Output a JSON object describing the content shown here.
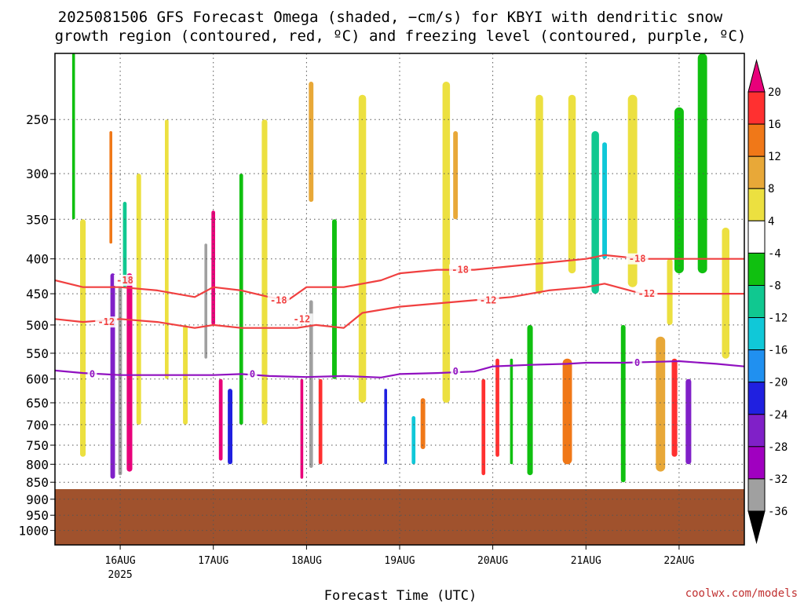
{
  "chart_data": {
    "type": "heatmap",
    "title_line1": "2025081506 GFS Forecast Omega (shaded, −cm/s) for KBYI with dendritic snow",
    "title_line2": "growth region (contoured, red, ºC) and freezing level (contoured, purple, ºC)",
    "xlabel": "Forecast Time (UTC)",
    "ylabel": "",
    "credit": "coolwx.com/models",
    "y_axis": {
      "scale": "pressure",
      "ylim": [
        1050,
        200
      ],
      "ticks": [
        250,
        300,
        350,
        400,
        450,
        500,
        550,
        600,
        650,
        700,
        750,
        800,
        850,
        900,
        950,
        1000
      ]
    },
    "x_axis": {
      "xlim": [
        -0.7,
        6.7
      ],
      "ticks": [
        {
          "x": 0,
          "label": "16AUG",
          "sublabel": "2025"
        },
        {
          "x": 1,
          "label": "17AUG",
          "sublabel": ""
        },
        {
          "x": 2,
          "label": "18AUG",
          "sublabel": ""
        },
        {
          "x": 3,
          "label": "19AUG",
          "sublabel": ""
        },
        {
          "x": 4,
          "label": "20AUG",
          "sublabel": ""
        },
        {
          "x": 5,
          "label": "21AUG",
          "sublabel": ""
        },
        {
          "x": 6,
          "label": "22AUG",
          "sublabel": ""
        }
      ]
    },
    "grid": true,
    "colorbar": {
      "levels": [
        20,
        16,
        12,
        8,
        4,
        -4,
        -8,
        -12,
        -16,
        -20,
        -24,
        -28,
        -32,
        -36
      ],
      "colors": [
        "#e8007a",
        "#ff3030",
        "#f07818",
        "#e8a838",
        "#ece040",
        "#ffffff",
        "#10c010",
        "#10c890",
        "#10c8d8",
        "#2090f0",
        "#2020e0",
        "#8020c8",
        "#a000c0",
        "#a0a0a0",
        "#000000"
      ]
    },
    "ground_level_hpa": 870,
    "ground_color": "#a0522d",
    "omega_features": [
      {
        "x": 0.0,
        "p_top": 440,
        "p_bot": 830,
        "w": 0.04,
        "value": -36
      },
      {
        "x": -0.08,
        "p_top": 420,
        "p_bot": 840,
        "w": 0.05,
        "value": -28
      },
      {
        "x": 0.1,
        "p_top": 420,
        "p_bot": 820,
        "w": 0.06,
        "value": 20
      },
      {
        "x": 0.05,
        "p_top": 330,
        "p_bot": 440,
        "w": 0.04,
        "value": -12
      },
      {
        "x": -0.1,
        "p_top": 260,
        "p_bot": 380,
        "w": 0.03,
        "value": 12
      },
      {
        "x": 0.2,
        "p_top": 300,
        "p_bot": 700,
        "w": 0.05,
        "value": 4
      },
      {
        "x": 0.92,
        "p_top": 380,
        "p_bot": 560,
        "w": 0.03,
        "value": -36
      },
      {
        "x": 1.0,
        "p_top": 340,
        "p_bot": 500,
        "w": 0.04,
        "value": 20
      },
      {
        "x": 1.08,
        "p_top": 600,
        "p_bot": 790,
        "w": 0.04,
        "value": 20
      },
      {
        "x": 1.18,
        "p_top": 620,
        "p_bot": 800,
        "w": 0.05,
        "value": -24
      },
      {
        "x": 1.3,
        "p_top": 300,
        "p_bot": 700,
        "w": 0.04,
        "value": -8
      },
      {
        "x": 1.95,
        "p_top": 600,
        "p_bot": 840,
        "w": 0.03,
        "value": 20
      },
      {
        "x": 2.05,
        "p_top": 460,
        "p_bot": 810,
        "w": 0.04,
        "value": -36
      },
      {
        "x": 2.15,
        "p_top": 600,
        "p_bot": 800,
        "w": 0.04,
        "value": 16
      },
      {
        "x": 2.3,
        "p_top": 350,
        "p_bot": 600,
        "w": 0.05,
        "value": -8
      },
      {
        "x": 2.05,
        "p_top": 220,
        "p_bot": 330,
        "w": 0.05,
        "value": 8
      },
      {
        "x": 2.85,
        "p_top": 620,
        "p_bot": 800,
        "w": 0.03,
        "value": -24
      },
      {
        "x": 3.15,
        "p_top": 680,
        "p_bot": 800,
        "w": 0.04,
        "value": -16
      },
      {
        "x": 3.25,
        "p_top": 640,
        "p_bot": 760,
        "w": 0.05,
        "value": 12
      },
      {
        "x": 3.9,
        "p_top": 600,
        "p_bot": 830,
        "w": 0.04,
        "value": 16
      },
      {
        "x": 4.05,
        "p_top": 560,
        "p_bot": 780,
        "w": 0.04,
        "value": 16
      },
      {
        "x": 4.2,
        "p_top": 560,
        "p_bot": 800,
        "w": 0.03,
        "value": -8
      },
      {
        "x": 4.8,
        "p_top": 560,
        "p_bot": 800,
        "w": 0.1,
        "value": 12
      },
      {
        "x": 5.1,
        "p_top": 260,
        "p_bot": 450,
        "w": 0.08,
        "value": -12
      },
      {
        "x": 5.2,
        "p_top": 270,
        "p_bot": 400,
        "w": 0.05,
        "value": -16
      },
      {
        "x": 4.85,
        "p_top": 230,
        "p_bot": 420,
        "w": 0.08,
        "value": 4
      },
      {
        "x": 5.5,
        "p_top": 230,
        "p_bot": 440,
        "w": 0.1,
        "value": 4
      },
      {
        "x": 5.8,
        "p_top": 520,
        "p_bot": 820,
        "w": 0.1,
        "value": 8
      },
      {
        "x": 5.95,
        "p_top": 560,
        "p_bot": 780,
        "w": 0.06,
        "value": 16
      },
      {
        "x": 6.0,
        "p_top": 270,
        "p_bot": 360,
        "w": 0.04,
        "value": -24
      },
      {
        "x": 6.0,
        "p_top": 240,
        "p_bot": 420,
        "w": 0.1,
        "value": -8
      },
      {
        "x": 6.25,
        "p_top": 230,
        "p_bot": 300,
        "w": 0.04,
        "value": -20
      },
      {
        "x": 6.25,
        "p_top": 200,
        "p_bot": 420,
        "w": 0.1,
        "value": -8
      },
      {
        "x": 6.1,
        "p_top": 600,
        "p_bot": 800,
        "w": 0.06,
        "value": -28
      },
      {
        "x": 6.5,
        "p_top": 360,
        "p_bot": 560,
        "w": 0.08,
        "value": 4
      },
      {
        "x": -0.4,
        "p_top": 350,
        "p_bot": 780,
        "w": 0.06,
        "value": 4
      },
      {
        "x": -0.5,
        "p_top": 200,
        "p_bot": 350,
        "w": 0.03,
        "value": -8
      },
      {
        "x": 0.5,
        "p_top": 250,
        "p_bot": 600,
        "w": 0.04,
        "value": 4
      },
      {
        "x": 0.7,
        "p_top": 500,
        "p_bot": 700,
        "w": 0.05,
        "value": 4
      },
      {
        "x": 1.55,
        "p_top": 250,
        "p_bot": 700,
        "w": 0.06,
        "value": 4
      },
      {
        "x": 2.6,
        "p_top": 230,
        "p_bot": 650,
        "w": 0.08,
        "value": 4
      },
      {
        "x": 3.5,
        "p_top": 220,
        "p_bot": 650,
        "w": 0.08,
        "value": 4
      },
      {
        "x": 3.6,
        "p_top": 260,
        "p_bot": 350,
        "w": 0.05,
        "value": 8
      },
      {
        "x": 4.5,
        "p_top": 230,
        "p_bot": 450,
        "w": 0.08,
        "value": 4
      },
      {
        "x": 4.4,
        "p_top": 500,
        "p_bot": 830,
        "w": 0.06,
        "value": -8
      },
      {
        "x": 5.4,
        "p_top": 500,
        "p_bot": 850,
        "w": 0.05,
        "value": -8
      },
      {
        "x": 5.9,
        "p_top": 400,
        "p_bot": 500,
        "w": 0.06,
        "value": 4
      }
    ],
    "contours": [
      {
        "name": "dendritic -18",
        "color": "#f04040",
        "label": "-18",
        "x": [
          -0.7,
          -0.4,
          0,
          0.4,
          0.8,
          1.0,
          1.3,
          1.6,
          1.8,
          2.0,
          2.4,
          2.8,
          3.0,
          3.4,
          3.8,
          4.2,
          4.6,
          5.0,
          5.2,
          5.6,
          6.0,
          6.4,
          6.7
        ],
        "p": [
          430,
          440,
          440,
          445,
          455,
          440,
          445,
          455,
          460,
          440,
          440,
          430,
          420,
          415,
          415,
          410,
          405,
          400,
          395,
          400,
          400,
          400,
          400
        ],
        "label_positions": [
          {
            "x": 0.05,
            "p": 430
          },
          {
            "x": 1.7,
            "p": 460
          },
          {
            "x": 3.65,
            "p": 415
          },
          {
            "x": 5.55,
            "p": 400
          }
        ]
      },
      {
        "name": "dendritic -12",
        "color": "#f04040",
        "label": "-12",
        "x": [
          -0.7,
          -0.4,
          0,
          0.4,
          0.8,
          1.0,
          1.3,
          1.6,
          1.9,
          2.1,
          2.4,
          2.6,
          3.0,
          3.4,
          3.8,
          4.2,
          4.6,
          5.0,
          5.2,
          5.6,
          6.0,
          6.4,
          6.7
        ],
        "p": [
          490,
          495,
          490,
          495,
          505,
          500,
          505,
          505,
          505,
          500,
          505,
          480,
          470,
          465,
          460,
          455,
          445,
          440,
          435,
          450,
          450,
          450,
          450
        ],
        "label_positions": [
          {
            "x": -0.15,
            "p": 495
          },
          {
            "x": 1.95,
            "p": 490
          },
          {
            "x": 3.95,
            "p": 460
          },
          {
            "x": 5.65,
            "p": 450
          }
        ]
      },
      {
        "name": "freezing level 0",
        "color": "#9010c0",
        "label": "0",
        "x": [
          -0.7,
          -0.4,
          0,
          0.4,
          0.8,
          1.0,
          1.3,
          1.6,
          2.0,
          2.4,
          2.8,
          3.0,
          3.4,
          3.8,
          4.0,
          4.4,
          4.8,
          5.0,
          5.4,
          5.8,
          6.0,
          6.4,
          6.7
        ],
        "p": [
          583,
          588,
          592,
          592,
          592,
          592,
          590,
          594,
          596,
          594,
          597,
          590,
          588,
          585,
          575,
          572,
          570,
          568,
          568,
          566,
          565,
          570,
          575
        ],
        "label_positions": [
          {
            "x": -0.3,
            "p": 590
          },
          {
            "x": 1.42,
            "p": 590
          },
          {
            "x": 3.6,
            "p": 585
          },
          {
            "x": 5.55,
            "p": 568
          }
        ]
      }
    ]
  }
}
